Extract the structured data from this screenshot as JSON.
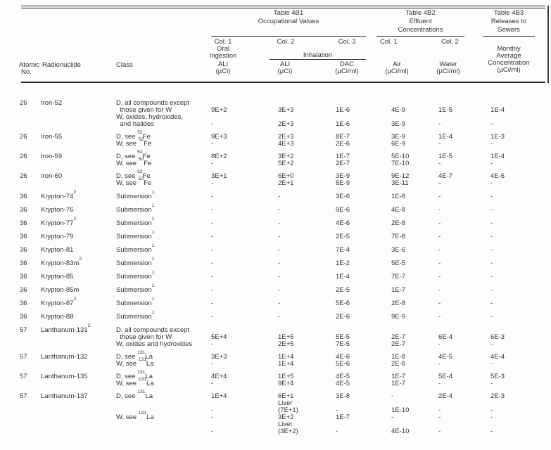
{
  "header": {
    "left": {
      "atomic_1": "Atomic",
      "atomic_2": "No.",
      "radionuclide": "Radionuclide",
      "class_label": "Class"
    },
    "t4b1": {
      "title": "Table 4B1",
      "subtitle": "Occupational Values",
      "col1": "Col. 1",
      "oral": "Oral",
      "ingestion": "Ingestion",
      "ali1": "ALI",
      "ali1_unit": "(µCi)",
      "col2": "Col. 2",
      "col3": "Col. 3",
      "inhalation": "Inhalation",
      "ali2": "ALI",
      "ali2_unit": "(µCi)",
      "dac": "DAC",
      "dac_unit": "(µCi/ml)"
    },
    "t4b2": {
      "title": "Table 4B2",
      "subtitle_1": "Effluent",
      "subtitle_2": "Concentrations",
      "col1": "Col. 1",
      "col2": "Col. 2",
      "air": "Air",
      "air_unit": "(µCi/ml)",
      "water": "Water",
      "water_unit": "(µCi/ml)"
    },
    "t4b3": {
      "title": "Table 4B3",
      "subtitle_1": "Releases to",
      "subtitle_2": "Sewers",
      "monthly_1": "Monthly",
      "monthly_2": "Average",
      "monthly_3": "Concentration",
      "monthly_4": "(µCi/ml)"
    }
  },
  "table": {
    "groups": [
      {
        "name": "iron",
        "entries": [
          {
            "atomic_no": "26",
            "nuclide": [
              {
                "t": "Iron-52"
              }
            ],
            "lines": [
              {
                "class": [
                  {
                    "t": "D, all compounds except"
                  }
                ],
                "vals": [
                  "",
                  "",
                  "",
                  "",
                  "",
                  ""
                ]
              },
              {
                "class": [
                  {
                    "t": "  those given for W"
                  }
                ],
                "vals": [
                  "9E+2",
                  "3E+3",
                  "1E-6",
                  "4E-9",
                  "1E-5",
                  "1E-4"
                ]
              },
              {
                "class": [
                  {
                    "t": "W, oxides, hydroxides,"
                  }
                ],
                "vals": [
                  "",
                  "",
                  "",
                  "",
                  "",
                  ""
                ]
              },
              {
                "class": [
                  {
                    "t": "  and halides"
                  }
                ],
                "vals": [
                  "-",
                  "2E+3",
                  "1E-6",
                  "3E-9",
                  "-",
                  "-"
                ]
              }
            ]
          },
          {
            "atomic_no": "26",
            "nuclide": [
              {
                "t": "Iron-55"
              }
            ],
            "lines": [
              {
                "class": [
                  {
                    "t": "D, see "
                  },
                  {
                    "sup": "52"
                  },
                  {
                    "t": "Fe"
                  }
                ],
                "vals": [
                  "9E+3",
                  "2E+3",
                  "8E-7",
                  "3E-9",
                  "1E-4",
                  "1E-3"
                ]
              },
              {
                "class": [
                  {
                    "t": "W, see "
                  },
                  {
                    "sup": "52"
                  },
                  {
                    "t": "Fe"
                  }
                ],
                "vals": [
                  "-",
                  "4E+3",
                  "2E-6",
                  "6E-9",
                  "-",
                  "-"
                ]
              }
            ]
          },
          {
            "atomic_no": "26",
            "nuclide": [
              {
                "t": "Iron-59"
              }
            ],
            "lines": [
              {
                "class": [
                  {
                    "t": "D, see "
                  },
                  {
                    "sup": "52"
                  },
                  {
                    "t": "Fe"
                  }
                ],
                "vals": [
                  "8E+2",
                  "3E+2",
                  "1E-7",
                  "5E-10",
                  "1E-5",
                  "1E-4"
                ]
              },
              {
                "class": [
                  {
                    "t": "W, see "
                  },
                  {
                    "sup": "52"
                  },
                  {
                    "t": "Fe"
                  }
                ],
                "vals": [
                  "-",
                  "5E+2",
                  "2E-7",
                  "7E-10",
                  "-",
                  "-"
                ]
              }
            ]
          },
          {
            "atomic_no": "26",
            "nuclide": [
              {
                "t": "Iron-60"
              }
            ],
            "lines": [
              {
                "class": [
                  {
                    "t": "D, see "
                  },
                  {
                    "sup": "52"
                  },
                  {
                    "t": "Fe"
                  }
                ],
                "vals": [
                  "3E+1",
                  "6E+0",
                  "3E-9",
                  "9E-12",
                  "4E-7",
                  "4E-6"
                ]
              },
              {
                "class": [
                  {
                    "t": "W, see "
                  },
                  {
                    "sup": "52"
                  },
                  {
                    "t": "Fe"
                  }
                ],
                "vals": [
                  "-",
                  "2E+1",
                  "8E-9",
                  "3E-11",
                  "-",
                  "-"
                ]
              }
            ]
          }
        ]
      },
      {
        "name": "krypton",
        "entries": [
          {
            "atomic_no": "36",
            "nuclide": [
              {
                "t": "Krypton-74"
              },
              {
                "sup": "2"
              }
            ],
            "lines": [
              {
                "class": [
                  {
                    "t": "Submersion"
                  },
                  {
                    "sup": "1"
                  }
                ],
                "vals": [
                  "-",
                  "-",
                  "3E-6",
                  "1E-8",
                  "-",
                  "-"
                ]
              }
            ]
          },
          {
            "atomic_no": "36",
            "nuclide": [
              {
                "t": "Krypton-76"
              }
            ],
            "lines": [
              {
                "class": [
                  {
                    "t": "Submersion"
                  },
                  {
                    "sup": "1"
                  }
                ],
                "vals": [
                  "-",
                  "-",
                  "9E-6",
                  "4E-8",
                  "-",
                  "-"
                ]
              }
            ]
          },
          {
            "atomic_no": "36",
            "nuclide": [
              {
                "t": "Krypton-77"
              },
              {
                "sup": "2"
              }
            ],
            "lines": [
              {
                "class": [
                  {
                    "t": "Submersion"
                  },
                  {
                    "sup": "1"
                  }
                ],
                "vals": [
                  "-",
                  "-",
                  "4E-6",
                  "2E-8",
                  "-",
                  "-"
                ]
              }
            ]
          },
          {
            "atomic_no": "36",
            "nuclide": [
              {
                "t": "Krypton-79"
              }
            ],
            "lines": [
              {
                "class": [
                  {
                    "t": "Submersion"
                  },
                  {
                    "sup": "1"
                  }
                ],
                "vals": [
                  "-",
                  "-",
                  "2E-5",
                  "7E-8",
                  "-",
                  "-"
                ]
              }
            ]
          },
          {
            "atomic_no": "36",
            "nuclide": [
              {
                "t": "Krypton-81"
              }
            ],
            "lines": [
              {
                "class": [
                  {
                    "t": "Submersion"
                  },
                  {
                    "sup": "1"
                  }
                ],
                "vals": [
                  "-",
                  "-",
                  "7E-4",
                  "3E-6",
                  "-",
                  "-"
                ]
              }
            ]
          },
          {
            "atomic_no": "36",
            "nuclide": [
              {
                "t": "Krypton-83m"
              },
              {
                "sup": "2"
              }
            ],
            "lines": [
              {
                "class": [
                  {
                    "t": "Submersion"
                  },
                  {
                    "sup": "1"
                  }
                ],
                "vals": [
                  "-",
                  "-",
                  "1E-2",
                  "5E-5",
                  "-",
                  "-"
                ]
              }
            ]
          },
          {
            "atomic_no": "36",
            "nuclide": [
              {
                "t": "Krypton-85"
              }
            ],
            "lines": [
              {
                "class": [
                  {
                    "t": "Submersion"
                  },
                  {
                    "sup": "1"
                  }
                ],
                "vals": [
                  "-",
                  "-",
                  "1E-4",
                  "7E-7",
                  "-",
                  "-"
                ]
              }
            ]
          },
          {
            "atomic_no": "36",
            "nuclide": [
              {
                "t": "Krypton-85m"
              }
            ],
            "lines": [
              {
                "class": [
                  {
                    "t": "Submersion"
                  },
                  {
                    "sup": "1"
                  }
                ],
                "vals": [
                  "-",
                  "-",
                  "2E-5",
                  "1E-7",
                  "-",
                  "-"
                ]
              }
            ]
          },
          {
            "atomic_no": "36",
            "nuclide": [
              {
                "t": "Krypton-87"
              },
              {
                "sup": "2"
              }
            ],
            "lines": [
              {
                "class": [
                  {
                    "t": "Submersion"
                  },
                  {
                    "sup": "1"
                  }
                ],
                "vals": [
                  "-",
                  "-",
                  "5E-6",
                  "2E-8",
                  "-",
                  "-"
                ]
              }
            ]
          },
          {
            "atomic_no": "36",
            "nuclide": [
              {
                "t": "Krypton-88"
              }
            ],
            "lines": [
              {
                "class": [
                  {
                    "t": "Submersion"
                  },
                  {
                    "sup": "1"
                  }
                ],
                "vals": [
                  "-",
                  "-",
                  "2E-6",
                  "9E-9",
                  "-",
                  "-"
                ]
              }
            ]
          }
        ]
      },
      {
        "name": "lanthanum",
        "entries": [
          {
            "atomic_no": "57",
            "nuclide": [
              {
                "t": "Lanthanum-131"
              },
              {
                "sup": "2"
              }
            ],
            "lines": [
              {
                "class": [
                  {
                    "t": "D, all compounds except"
                  }
                ],
                "vals": [
                  "",
                  "",
                  "",
                  "",
                  "",
                  ""
                ]
              },
              {
                "class": [
                  {
                    "t": "  those given for W"
                  }
                ],
                "vals": [
                  "5E+4",
                  "1E+5",
                  "5E-5",
                  "2E-7",
                  "6E-4",
                  "6E-3"
                ]
              },
              {
                "class": [
                  {
                    "t": "W, oxides and hydroxides"
                  }
                ],
                "vals": [
                  "-",
                  "2E+5",
                  "7E-5",
                  "2E-7",
                  "-",
                  "-"
                ]
              }
            ]
          },
          {
            "atomic_no": "57",
            "nuclide": [
              {
                "t": "Lanthanum-132"
              }
            ],
            "lines": [
              {
                "class": [
                  {
                    "t": "D, see "
                  },
                  {
                    "sup": "131"
                  },
                  {
                    "t": "La"
                  }
                ],
                "vals": [
                  "3E+3",
                  "1E+4",
                  "4E-6",
                  "1E-8",
                  "4E-5",
                  "4E-4"
                ]
              },
              {
                "class": [
                  {
                    "t": "W, see "
                  },
                  {
                    "sup": "131"
                  },
                  {
                    "t": "La"
                  }
                ],
                "vals": [
                  "-",
                  "1E+4",
                  "5E-6",
                  "2E-8",
                  "-",
                  "-"
                ]
              }
            ]
          },
          {
            "atomic_no": "57",
            "nuclide": [
              {
                "t": "Lanthanum-135"
              }
            ],
            "lines": [
              {
                "class": [
                  {
                    "t": "D, see "
                  },
                  {
                    "sup": "131"
                  },
                  {
                    "t": "La"
                  }
                ],
                "vals": [
                  "4E+4",
                  "1E+5",
                  "4E-5",
                  "1E-7",
                  "5E-4",
                  "5E-3"
                ]
              },
              {
                "class": [
                  {
                    "t": "W, see "
                  },
                  {
                    "sup": "131"
                  },
                  {
                    "t": "La"
                  }
                ],
                "vals": [
                  "-",
                  "9E+4",
                  "4E-5",
                  "1E-7",
                  "-",
                  "-"
                ]
              }
            ]
          },
          {
            "atomic_no": "57",
            "nuclide": [
              {
                "t": "Lanthanum-137"
              }
            ],
            "lines": [
              {
                "class": [
                  {
                    "t": "D, see "
                  },
                  {
                    "sup": "131"
                  },
                  {
                    "t": "La"
                  }
                ],
                "vals": [
                  "1E+4",
                  "6E+1",
                  "3E-8",
                  "-",
                  "2E-4",
                  "2E-3"
                ]
              },
              {
                "class": [],
                "vals": [
                  "",
                  "Liver",
                  "",
                  "",
                  "",
                  ""
                ]
              },
              {
                "class": [],
                "vals": [
                  "-",
                  "(7E+1)",
                  "-",
                  "1E-10",
                  "-",
                  "-"
                ]
              },
              {
                "class": [
                  {
                    "t": "W, see "
                  },
                  {
                    "sup": "131"
                  },
                  {
                    "t": "La"
                  }
                ],
                "vals": [
                  "-",
                  "3E+2",
                  "1E-7",
                  "-",
                  "-",
                  "-"
                ]
              },
              {
                "class": [],
                "vals": [
                  "",
                  "Liver",
                  "",
                  "",
                  "",
                  ""
                ]
              },
              {
                "class": [],
                "vals": [
                  "-",
                  "(3E+2)",
                  "-",
                  "4E-10",
                  "-",
                  "-"
                ]
              }
            ]
          }
        ]
      }
    ]
  }
}
